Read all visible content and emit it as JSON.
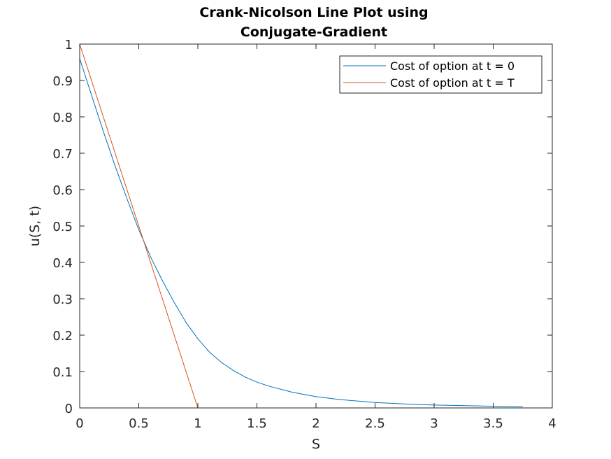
{
  "chart_data": {
    "type": "line",
    "title_lines": [
      "Crank-Nicolson Line Plot using",
      "Conjugate-Gradient"
    ],
    "xlabel": "S",
    "ylabel": "u(S, t)",
    "xlim": [
      0,
      4
    ],
    "ylim": [
      0,
      1
    ],
    "xticks": [
      0,
      0.5,
      1,
      1.5,
      2,
      2.5,
      3,
      3.5,
      4
    ],
    "xtick_labels": [
      "0",
      "0.5",
      "1",
      "1.5",
      "2",
      "2.5",
      "3",
      "3.5",
      "4"
    ],
    "yticks": [
      0,
      0.1,
      0.2,
      0.3,
      0.4,
      0.5,
      0.6,
      0.7,
      0.8,
      0.9,
      1
    ],
    "ytick_labels": [
      "0",
      "0.1",
      "0.2",
      "0.3",
      "0.4",
      "0.5",
      "0.6",
      "0.7",
      "0.8",
      "0.9",
      "1"
    ],
    "grid": false,
    "legend_position": "top-right",
    "series": [
      {
        "name": "Cost of option at t = 0",
        "color": "#0072BD",
        "x": [
          0,
          0.1,
          0.2,
          0.3,
          0.4,
          0.5,
          0.6,
          0.7,
          0.8,
          0.9,
          1.0,
          1.1,
          1.2,
          1.3,
          1.4,
          1.5,
          1.6,
          1.8,
          2.0,
          2.2,
          2.5,
          2.8,
          3.0,
          3.3,
          3.6,
          3.75
        ],
        "y": [
          0.96,
          0.86,
          0.76,
          0.665,
          0.575,
          0.49,
          0.415,
          0.35,
          0.29,
          0.235,
          0.19,
          0.153,
          0.125,
          0.103,
          0.085,
          0.071,
          0.06,
          0.043,
          0.031,
          0.023,
          0.015,
          0.01,
          0.008,
          0.006,
          0.004,
          0.003
        ]
      },
      {
        "name": "Cost of option at t = T",
        "color": "#D95319",
        "x": [
          0,
          1,
          3.75
        ],
        "y": [
          1,
          0,
          0
        ]
      }
    ]
  }
}
